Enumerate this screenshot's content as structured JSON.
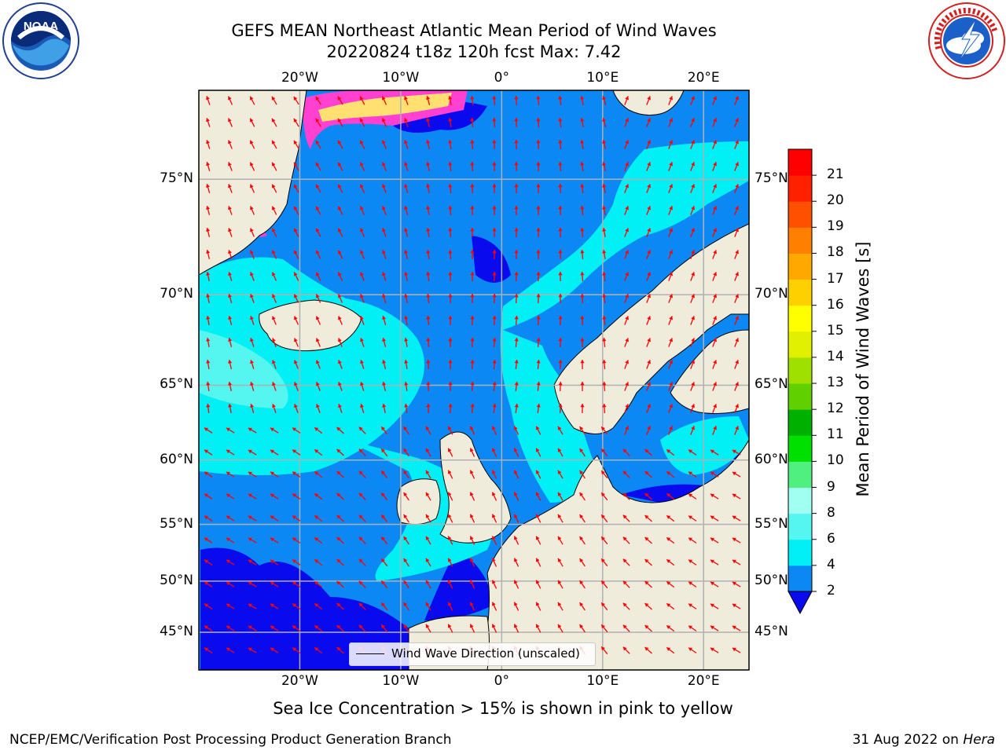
{
  "title": {
    "line1": "GEFS MEAN Northeast Atlantic Mean Period of Wind Waves",
    "line2": "20220824 t18z 120h fcst   Max: 7.42"
  },
  "map": {
    "lon_range": [
      -30,
      24.5
    ],
    "lat_range": [
      41,
      78
    ],
    "lon_ticks": [
      "20°W",
      "10°W",
      "0°",
      "10°E",
      "20°E"
    ],
    "lon_tick_values": [
      -20,
      -10,
      0,
      10,
      20
    ],
    "lat_ticks": [
      "75°N",
      "70°N",
      "65°N",
      "60°N",
      "55°N",
      "50°N",
      "45°N"
    ],
    "lat_tick_values": [
      75,
      70,
      65,
      60,
      55,
      50,
      45
    ],
    "grid": true,
    "colors": {
      "land": "#efecdc",
      "ocean_2_4": "#0c88f5",
      "ocean_lt2": "#0a0aee",
      "ocean_4_6": "#00f0f5",
      "ocean_6_8": "#55f5f0",
      "ice_pink": "#ff40d0",
      "ice_yellow": "#ffe070",
      "arrow": "#ff0000"
    }
  },
  "legend": {
    "label": "Wind Wave Direction (unscaled)",
    "placement": "bottom-center"
  },
  "colorbar": {
    "label": "Mean Period of Wind Waves [s]",
    "tick_labels": [
      "2",
      "4",
      "6",
      "8",
      "9",
      "10",
      "11",
      "12",
      "13",
      "14",
      "15",
      "16",
      "17",
      "18",
      "19",
      "20",
      "21"
    ],
    "levels": [
      2,
      4,
      6,
      8,
      9,
      10,
      11,
      12,
      13,
      14,
      15,
      16,
      17,
      18,
      19,
      20,
      21
    ],
    "colors": [
      "#0c88f5",
      "#00f0f5",
      "#55f5f0",
      "#a0fff0",
      "#50f080",
      "#00e000",
      "#00b000",
      "#60d000",
      "#a0e000",
      "#e0f000",
      "#ffff00",
      "#ffd000",
      "#ffa800",
      "#ff8000",
      "#ff5000",
      "#ff2000",
      "#ff0000"
    ],
    "under_color": "#0a0aee"
  },
  "footer": {
    "note": "Sea Ice Concentration > 15% is shown in pink to yellow",
    "left": "NCEP/EMC/Verification Post Processing Product Generation Branch",
    "right_date": "31 Aug 2022 on ",
    "right_host": "Hera"
  },
  "logos": {
    "left": "noaa-logo",
    "right": "nws-logo"
  }
}
